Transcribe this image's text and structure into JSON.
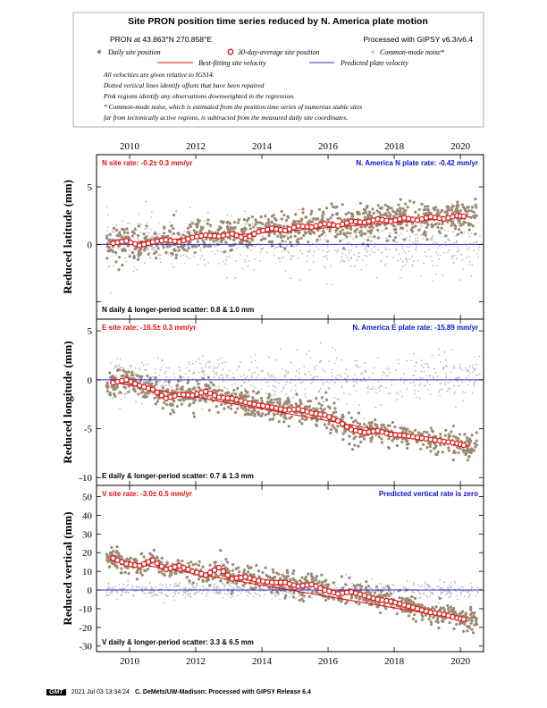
{
  "header": {
    "title": "Site PRON position time series reduced by N. America plate motion",
    "station": "PRON at 43.863°N 270.858°E",
    "processed": "Processed with GIPSY v6.3/v6.4",
    "legend": {
      "daily": "Daily site position",
      "avg30": "30-day-average site position",
      "cm": "Common-mode noise*",
      "fit": "Best-fitting site velocity",
      "pred": "Predicted plate velocity"
    },
    "notes": [
      "All velocities are given relative to IGS14.",
      "Dotted vertical lines identify offsets that have been repaired",
      "Pink regions identify any observations downweighted in the regression.",
      "* Common-mode noise, which is estimated from the position time series of numerous stable sites",
      "far from tectonically active regions, is subtracted from the measured daily site coordinates."
    ]
  },
  "chart_data": [
    {
      "type": "scatter",
      "component": "N",
      "ylabel": "Reduced latitude (mm)",
      "site_rate": "N site rate:  -0.2± 0.3 mm/yr",
      "plate_rate": "N. America N plate rate:  -0.42 mm/yr",
      "scatter": "N daily & longer-period scatter:    0.8 &    1.0 mm",
      "xlim": [
        2009.0,
        2020.7
      ],
      "ylim": [
        -6.5,
        7.8
      ],
      "yticks": [
        -5,
        0,
        5
      ],
      "ytick_labels": [
        "",
        "0",
        "5"
      ],
      "fit": [
        [
          2009.4,
          0.0
        ],
        [
          2020.3,
          2.4
        ]
      ],
      "avg_points": [
        [
          2009.5,
          0.1
        ],
        [
          2009.9,
          0.3
        ],
        [
          2010.3,
          -0.1
        ],
        [
          2010.7,
          0.2
        ],
        [
          2011.1,
          0.4
        ],
        [
          2011.5,
          0.2
        ],
        [
          2011.9,
          0.6
        ],
        [
          2012.3,
          0.8
        ],
        [
          2012.7,
          0.7
        ],
        [
          2013.1,
          0.9
        ],
        [
          2013.5,
          0.5
        ],
        [
          2013.9,
          1.1
        ],
        [
          2014.3,
          1.4
        ],
        [
          2014.7,
          1.2
        ],
        [
          2015.1,
          1.6
        ],
        [
          2015.5,
          1.5
        ],
        [
          2015.9,
          1.8
        ],
        [
          2016.3,
          1.6
        ],
        [
          2016.7,
          2.0
        ],
        [
          2017.1,
          1.9
        ],
        [
          2017.5,
          2.2
        ],
        [
          2017.9,
          2.0
        ],
        [
          2018.3,
          2.3
        ],
        [
          2018.7,
          2.1
        ],
        [
          2019.1,
          2.4
        ],
        [
          2019.5,
          2.2
        ],
        [
          2019.9,
          2.5
        ],
        [
          2020.2,
          2.4
        ]
      ],
      "daily_spread": 1.2,
      "cm_spread": 2.2
    },
    {
      "type": "scatter",
      "component": "E",
      "ylabel": "Reduced longitude (mm)",
      "site_rate": "E site rate:  -16.5± 0.3 mm/yr",
      "plate_rate": "N. America E plate rate:  -15.89 mm/yr",
      "scatter": "E daily & longer-period scatter:    0.7 &    1.3 mm",
      "xlim": [
        2009.0,
        2020.7
      ],
      "ylim": [
        -10.8,
        6.2
      ],
      "yticks": [
        -10,
        -5,
        0,
        5
      ],
      "ytick_labels": [
        "-10",
        "-5",
        "0",
        "5"
      ],
      "fit": [
        [
          2009.4,
          -0.2
        ],
        [
          2020.3,
          -6.8
        ]
      ],
      "avg_points": [
        [
          2009.5,
          -0.3
        ],
        [
          2009.9,
          0.0
        ],
        [
          2010.3,
          -0.6
        ],
        [
          2010.7,
          -1.0
        ],
        [
          2011.1,
          -1.9
        ],
        [
          2011.5,
          -1.5
        ],
        [
          2011.9,
          -1.6
        ],
        [
          2012.3,
          -1.2
        ],
        [
          2012.7,
          -1.8
        ],
        [
          2013.1,
          -1.9
        ],
        [
          2013.5,
          -2.3
        ],
        [
          2013.9,
          -2.6
        ],
        [
          2014.3,
          -2.8
        ],
        [
          2014.7,
          -3.1
        ],
        [
          2015.1,
          -3.0
        ],
        [
          2015.5,
          -3.4
        ],
        [
          2015.9,
          -3.6
        ],
        [
          2016.3,
          -4.2
        ],
        [
          2016.7,
          -5.1
        ],
        [
          2017.1,
          -5.4
        ],
        [
          2017.5,
          -5.2
        ],
        [
          2017.9,
          -5.6
        ],
        [
          2018.3,
          -5.7
        ],
        [
          2018.7,
          -5.9
        ],
        [
          2019.1,
          -6.1
        ],
        [
          2019.5,
          -6.3
        ],
        [
          2019.9,
          -6.5
        ],
        [
          2020.2,
          -6.8
        ]
      ],
      "daily_spread": 1.1,
      "cm_spread": 2.2
    },
    {
      "type": "scatter",
      "component": "V",
      "ylabel": "Reduced vertical (mm)",
      "site_rate": "V site rate:  -3.0± 0.5 mm/yr",
      "plate_rate": "Predicted vertical rate is zero",
      "scatter": "V daily & longer-period scatter:    3.3 &    6.5 mm",
      "xlim": [
        2009.0,
        2020.7
      ],
      "ylim": [
        -33,
        56
      ],
      "yticks": [
        -30,
        -20,
        -10,
        0,
        10,
        20,
        30,
        40,
        50
      ],
      "ytick_labels": [
        "-30",
        "-20",
        "-10",
        "0",
        "10",
        "20",
        "30",
        "40",
        "50"
      ],
      "fit": [
        [
          2009.4,
          16.5
        ],
        [
          2020.3,
          -16.5
        ]
      ],
      "avg_points": [
        [
          2009.5,
          17
        ],
        [
          2009.9,
          14
        ],
        [
          2010.3,
          13
        ],
        [
          2010.7,
          16
        ],
        [
          2011.1,
          11
        ],
        [
          2011.5,
          13
        ],
        [
          2011.9,
          10
        ],
        [
          2012.3,
          8
        ],
        [
          2012.7,
          12
        ],
        [
          2013.1,
          6
        ],
        [
          2013.5,
          7
        ],
        [
          2013.9,
          5
        ],
        [
          2014.3,
          4
        ],
        [
          2014.7,
          4
        ],
        [
          2015.1,
          2
        ],
        [
          2015.5,
          3
        ],
        [
          2015.9,
          0
        ],
        [
          2016.3,
          -2
        ],
        [
          2016.7,
          -1
        ],
        [
          2017.1,
          -3
        ],
        [
          2017.5,
          -5
        ],
        [
          2017.9,
          -6
        ],
        [
          2018.3,
          -8
        ],
        [
          2018.7,
          -10
        ],
        [
          2019.1,
          -12
        ],
        [
          2019.5,
          -13
        ],
        [
          2019.9,
          -15
        ],
        [
          2020.2,
          -16
        ]
      ],
      "daily_spread": 5,
      "cm_spread": 4
    }
  ],
  "xaxis": {
    "ticks": [
      2010,
      2012,
      2014,
      2016,
      2018,
      2020
    ],
    "labels": [
      "2010",
      "2012",
      "2014",
      "2016",
      "2018",
      "2020"
    ]
  },
  "colors": {
    "daily": "#9c8a72",
    "cm": "#b9b9b9",
    "fit": "#e01010",
    "pred": "#3030d0",
    "site_rate_text": "#e01010",
    "plate_rate_text": "#1010d0"
  },
  "footer": {
    "logo": "GMT",
    "timestamp": "2021 Jul 03 13:34:24",
    "credit": "C. DeMets/UW-Madison: Processed with GIPSY Release 6.4"
  }
}
